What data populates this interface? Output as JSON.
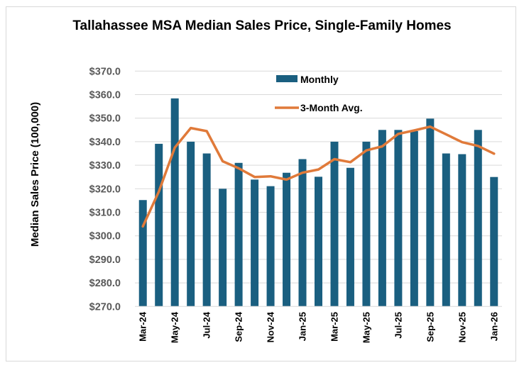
{
  "chart_data": {
    "type": "bar",
    "title": "Tallahassee MSA Median Sales Price, Single-Family Homes",
    "xlabel": "",
    "ylabel": "Median Sales Price (100,000)",
    "ylim": [
      270,
      370
    ],
    "ytick_step": 10,
    "ytick_labels": [
      "$370.0",
      "$360.0",
      "$350.0",
      "$340.0",
      "$330.0",
      "$320.0",
      "$310.0",
      "$300.0",
      "$290.0",
      "$280.0",
      "$270.0"
    ],
    "grid": true,
    "legend_position": "top-center-inside",
    "categories": [
      "Mar-24",
      "Apr-24",
      "May-24",
      "Jun-24",
      "Jul-24",
      "Aug-24",
      "Sep-24",
      "Oct-24",
      "Nov-24",
      "Dec-24",
      "Jan-25",
      "Feb-25",
      "Mar-25",
      "Apr-25",
      "May-25",
      "Jun-25",
      "Jul-25",
      "Aug-25",
      "Sep-25",
      "Oct-25",
      "Nov-25",
      "Dec-25",
      "Jan-26"
    ],
    "xtick_labels_shown": [
      "Mar-24",
      "May-24",
      "Jul-24",
      "Sep-24",
      "Nov-24",
      "Jan-25",
      "Mar-25",
      "May-25",
      "Jul-25",
      "Sep-25",
      "Nov-25",
      "Jan-26"
    ],
    "series": [
      {
        "name": "Monthly",
        "type": "bar",
        "color": "#1a5f80",
        "values": [
          315.2,
          339.1,
          358.4,
          340.0,
          335.0,
          320.0,
          331.0,
          323.9,
          321.1,
          326.8,
          332.6,
          325.1,
          340.0,
          328.9,
          340.0,
          345.0,
          345.0,
          344.5,
          349.8,
          335.0,
          334.7,
          345.0,
          325.0
        ]
      },
      {
        "name": "3-Month Avg.",
        "type": "line",
        "color": "#e07a3a",
        "values": [
          304.0,
          318.8,
          337.5,
          345.8,
          344.5,
          331.7,
          328.7,
          325.0,
          325.3,
          323.9,
          326.8,
          328.2,
          332.6,
          331.3,
          336.3,
          338.0,
          343.3,
          344.8,
          346.4,
          343.1,
          339.8,
          338.2,
          334.9
        ]
      }
    ]
  }
}
